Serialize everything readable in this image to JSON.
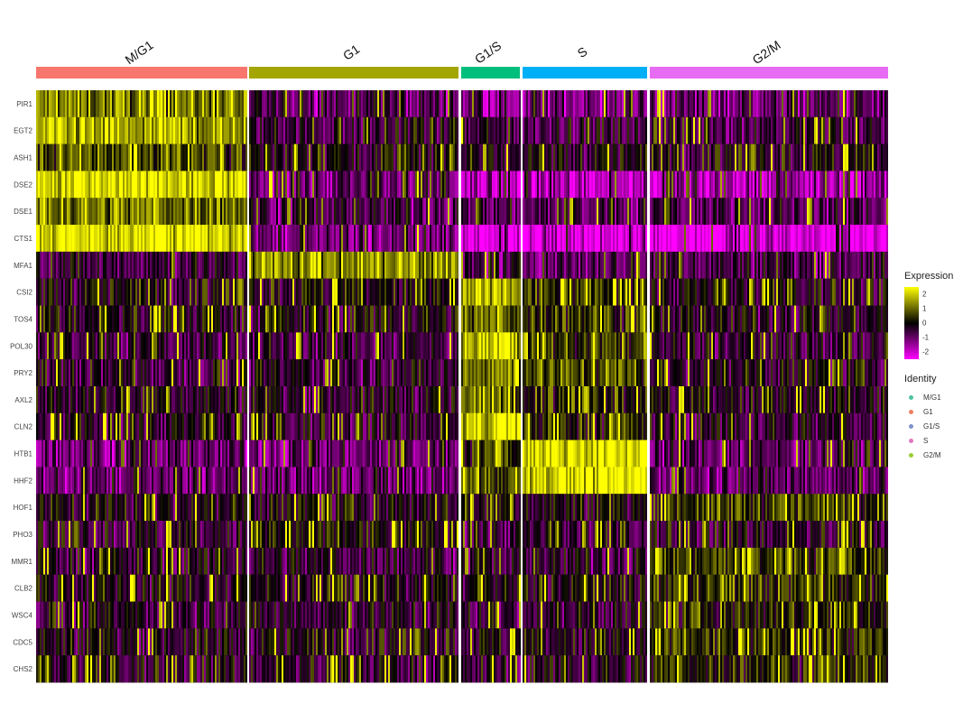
{
  "chart_data": {
    "type": "heatmap",
    "groups": [
      "M/G1",
      "G1",
      "G1/S",
      "S",
      "G2/M"
    ],
    "group_colors": [
      "#F8766D",
      "#A3A500",
      "#00BF7D",
      "#00B0F6",
      "#E76BF3"
    ],
    "genes": [
      "PIR1",
      "EGT2",
      "ASH1",
      "DSE2",
      "DSE1",
      "CTS1",
      "MFA1",
      "CSI2",
      "TOS4",
      "POL30",
      "PRY2",
      "AXL2",
      "CLN2",
      "HTB1",
      "HHF2",
      "HOF1",
      "PHO3",
      "MMR1",
      "CLB2",
      "WSC4",
      "CDC5",
      "CHS2"
    ],
    "mean_expression_by_group": [
      [
        1.2,
        -0.8,
        -1.2,
        -1.2,
        -1.0
      ],
      [
        1.5,
        -0.5,
        -0.6,
        -0.6,
        -0.5
      ],
      [
        0.8,
        -0.1,
        -0.2,
        -0.2,
        -0.2
      ],
      [
        2.0,
        -1.0,
        -1.8,
        -1.8,
        -1.6
      ],
      [
        1.2,
        -0.6,
        -0.8,
        -0.8,
        -0.7
      ],
      [
        2.2,
        -1.2,
        -2.4,
        -2.3,
        -2.2
      ],
      [
        -0.5,
        1.4,
        -0.8,
        -0.8,
        -0.6
      ],
      [
        -0.1,
        -0.1,
        1.5,
        0.5,
        -0.2
      ],
      [
        -0.1,
        -0.1,
        1.0,
        0.6,
        -0.2
      ],
      [
        -0.5,
        -0.5,
        1.8,
        0.5,
        -0.5
      ],
      [
        -0.4,
        -0.4,
        1.3,
        0.8,
        -0.2
      ],
      [
        -0.2,
        -0.3,
        1.0,
        0.3,
        -0.3
      ],
      [
        -0.3,
        -0.4,
        2.0,
        0.4,
        -0.4
      ],
      [
        -1.0,
        -1.0,
        0.5,
        2.2,
        -0.8
      ],
      [
        -1.0,
        -1.0,
        0.8,
        2.3,
        -0.8
      ],
      [
        -0.1,
        -0.1,
        -0.1,
        -0.1,
        0.6
      ],
      [
        -0.5,
        0.0,
        -0.5,
        -0.5,
        -0.3
      ],
      [
        -0.3,
        -0.4,
        -0.5,
        -0.4,
        0.6
      ],
      [
        -0.1,
        -0.1,
        -0.2,
        -0.1,
        0.5
      ],
      [
        -0.3,
        -0.3,
        -0.4,
        -0.4,
        0.3
      ],
      [
        -0.2,
        -0.2,
        -0.3,
        -0.3,
        0.4
      ],
      [
        -0.3,
        -0.3,
        -0.4,
        -0.3,
        0.4
      ]
    ],
    "color_scale": {
      "low": "#FF00FF",
      "mid": "#000000",
      "high": "#FFFF00",
      "range": [
        -2.5,
        2.5
      ]
    },
    "legend": {
      "expression_title": "Expression",
      "expression_ticks": [
        "2",
        "1",
        "0",
        "-1",
        "-2"
      ],
      "identity_title": "Identity",
      "identity_items": [
        {
          "label": "M/G1",
          "color": "#4DC3A0"
        },
        {
          "label": "G1",
          "color": "#F08060"
        },
        {
          "label": "G1/S",
          "color": "#7C93C8"
        },
        {
          "label": "S",
          "color": "#E377C2"
        },
        {
          "label": "G2/M",
          "color": "#9ACD32"
        }
      ],
      "placement": "right"
    }
  }
}
